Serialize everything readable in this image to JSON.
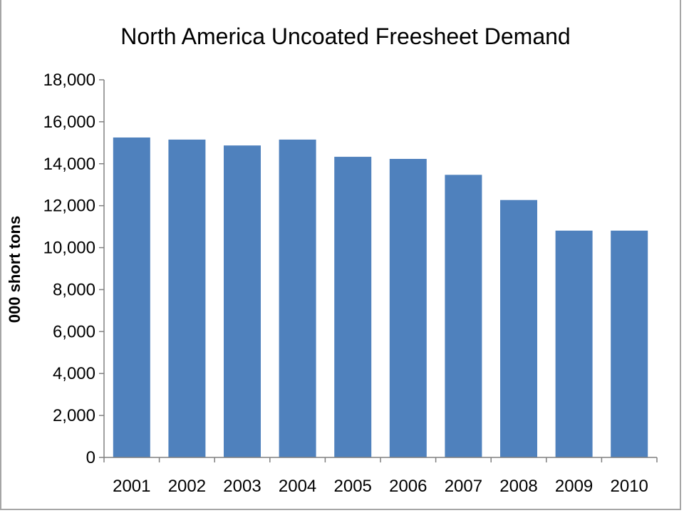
{
  "chart_data": {
    "type": "bar",
    "title": "North America Uncoated Freesheet Demand",
    "xlabel": "",
    "ylabel": "000 short tons",
    "categories": [
      "2001",
      "2002",
      "2003",
      "2004",
      "2005",
      "2006",
      "2007",
      "2008",
      "2009",
      "2010"
    ],
    "values": [
      15250,
      15150,
      14870,
      15150,
      14330,
      14230,
      13470,
      12270,
      10810,
      10810
    ],
    "ylim": [
      0,
      18000
    ],
    "yticks": [
      0,
      2000,
      4000,
      6000,
      8000,
      10000,
      12000,
      14000,
      16000,
      18000
    ],
    "ytick_labels": [
      "0",
      "2,000",
      "4,000",
      "6,000",
      "8,000",
      "10,000",
      "12,000",
      "14,000",
      "16,000",
      "18,000"
    ],
    "grid": false,
    "legend": "none",
    "bar_color": "#4f81bd",
    "axis_color": "#808080"
  }
}
